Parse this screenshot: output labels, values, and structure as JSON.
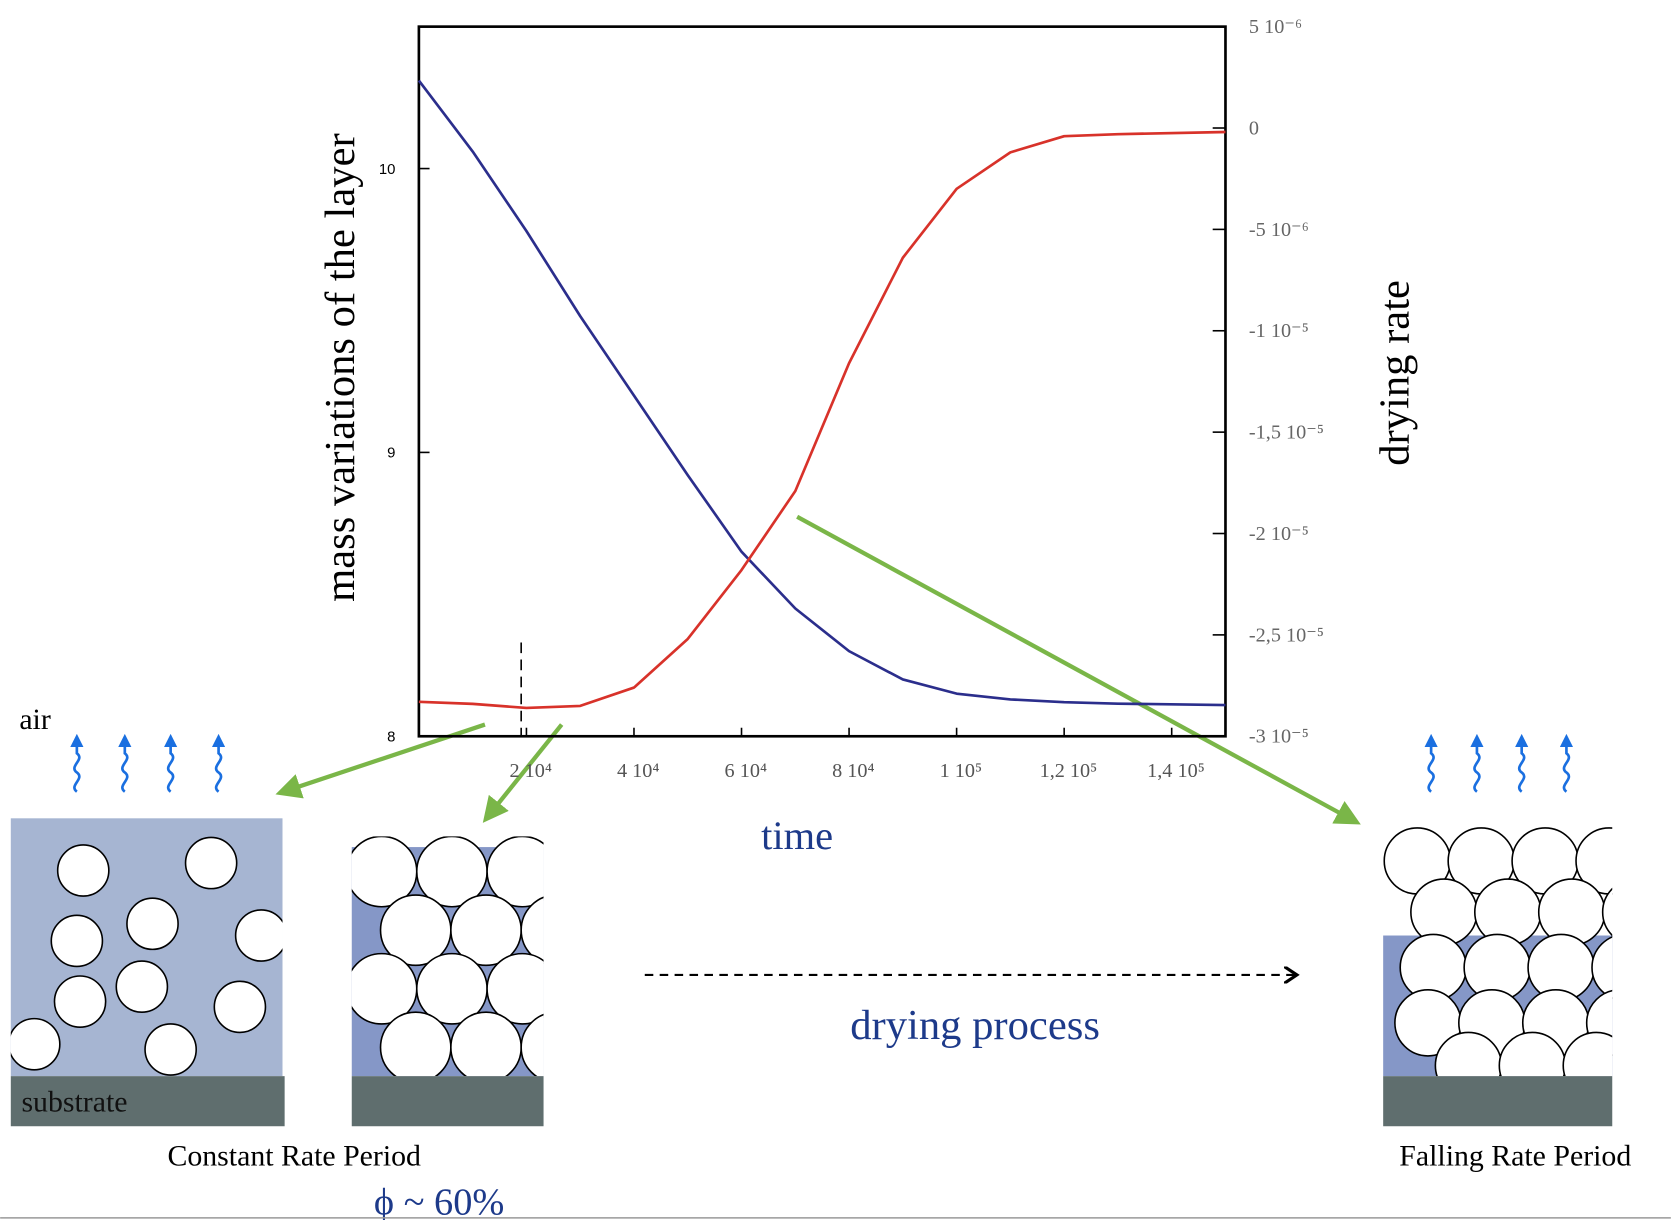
{
  "chart_data": {
    "type": "line",
    "x": [
      0,
      10000,
      20000,
      30000,
      40000,
      50000,
      60000,
      70000,
      80000,
      90000,
      100000,
      110000,
      120000,
      130000,
      150000
    ],
    "xlim": [
      0,
      150000
    ],
    "xticks": [
      {
        "value": 20000,
        "label": "2 10⁴"
      },
      {
        "value": 40000,
        "label": "4 10⁴"
      },
      {
        "value": 60000,
        "label": "6 10⁴"
      },
      {
        "value": 80000,
        "label": "8 10⁴"
      },
      {
        "value": 100000,
        "label": "1 10⁵"
      },
      {
        "value": 120000,
        "label": "1,2 10⁵"
      },
      {
        "value": 140000,
        "label": "1,4 10⁵"
      }
    ],
    "xlabel": "time",
    "ylim": [
      8,
      10.5
    ],
    "yticks": [
      8,
      9,
      10
    ],
    "y2lim": [
      -3e-05,
      5e-06
    ],
    "y2ticks": [
      {
        "value": 5e-06,
        "label": "5 10⁻⁶"
      },
      0,
      {
        "value": -5e-06,
        "label": "-5 10⁻⁶"
      },
      {
        "value": -1e-05,
        "label": "-1 10⁻⁵"
      },
      {
        "value": -1.5e-05,
        "label": "-1,5 10⁻⁵"
      },
      {
        "value": -2e-05,
        "label": "-2 10⁻⁵"
      },
      {
        "value": -2.5e-05,
        "label": "-2,5 10⁻⁵"
      },
      {
        "value": -3e-05,
        "label": "-3 10⁻⁵"
      }
    ],
    "series": [
      {
        "name": "mass variations of the layer",
        "color": "#2b2e8c",
        "values": [
          10.31,
          10.06,
          9.78,
          9.48,
          9.2,
          8.92,
          8.65,
          8.45,
          8.3,
          8.2,
          8.15,
          8.13,
          8.12,
          8.115,
          8.11
        ]
      },
      {
        "name": "drying rate",
        "color": "#d8322a",
        "axis": "y2",
        "values": [
          -2.83e-05,
          -2.84e-05,
          -2.86e-05,
          -2.85e-05,
          -2.76e-05,
          -2.52e-05,
          -2.18e-05,
          -1.79e-05,
          -1.16e-05,
          -6.4e-06,
          -3e-06,
          -1.2e-06,
          -4e-07,
          -3e-07,
          -2e-07
        ]
      }
    ]
  },
  "diagram": {
    "air": "air",
    "substrate": "substrate",
    "constant_rate": "Constant Rate Period",
    "packing": "ϕ ~ 60%",
    "process": "drying process",
    "falling_rate": "Falling Rate Period"
  }
}
